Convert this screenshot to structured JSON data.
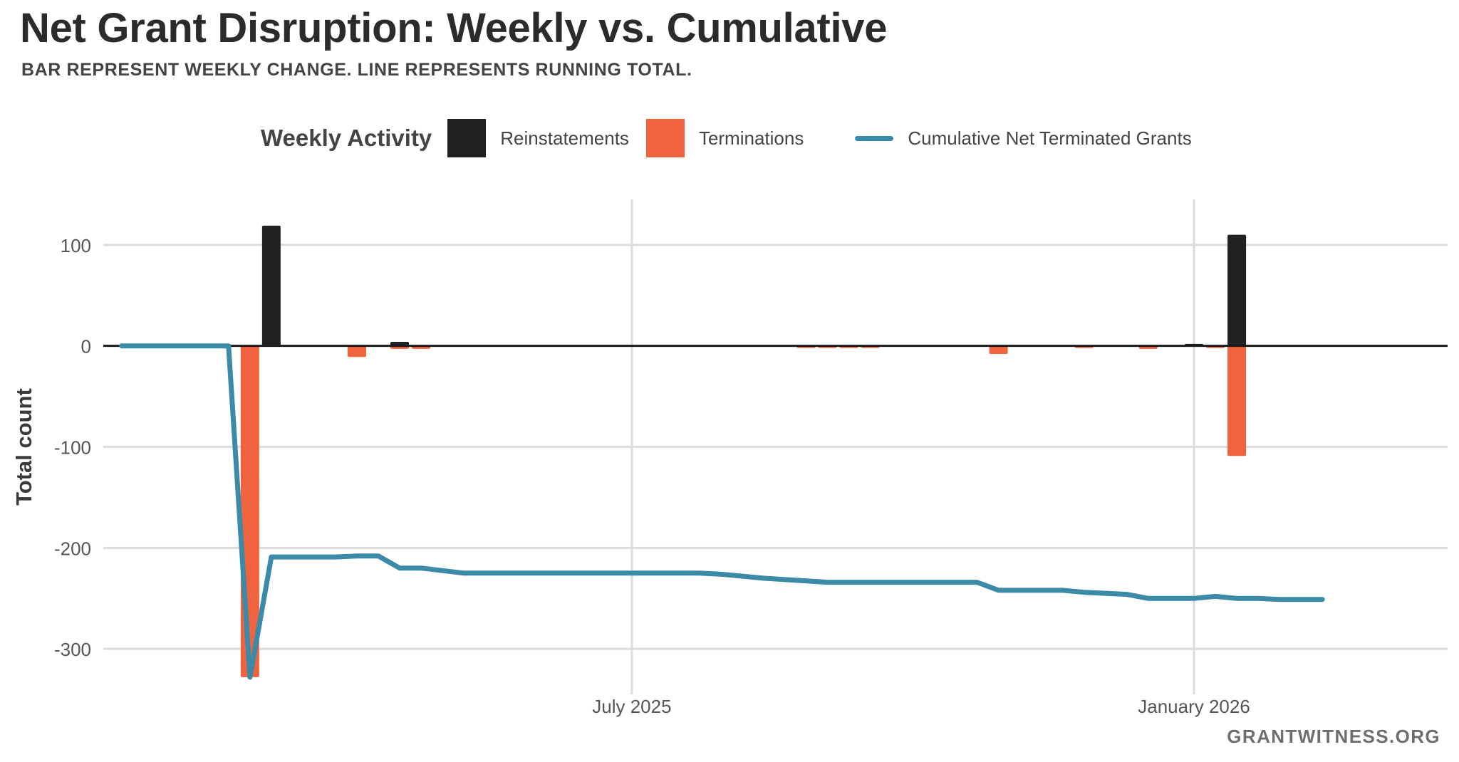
{
  "header": {
    "title": "Net Grant Disruption: Weekly vs. Cumulative",
    "subtitle": "BAR REPRESENT WEEKLY CHANGE. LINE REPRESENTS RUNNING TOTAL."
  },
  "legend": {
    "title": "Weekly Activity",
    "items": [
      {
        "label": "Reinstatements",
        "color": "#1f2122"
      },
      {
        "label": "Terminations",
        "color": "#f0633f"
      },
      {
        "label": "Cumulative Net Terminated Grants",
        "color": "#3a8aa8"
      }
    ]
  },
  "footer": {
    "source": "GRANTWITNESS.ORG"
  },
  "chart_data": {
    "type": "bar",
    "title": "Net Grant Disruption: Weekly vs. Cumulative",
    "subtitle": "BAR REPRESENT WEEKLY CHANGE. LINE REPRESENTS RUNNING TOTAL.",
    "xlabel": "",
    "ylabel": "Total count",
    "ylim": [
      -345,
      145
    ],
    "xlim": [
      "2025-01-09",
      "2026-03-25"
    ],
    "yticks": [
      100,
      0,
      -100,
      -200,
      -300
    ],
    "xticks": [
      {
        "date": "2025-07-01",
        "label": "July 2025"
      },
      {
        "date": "2026-01-01",
        "label": "January 2026"
      }
    ],
    "grid": true,
    "legend_position": "top",
    "series": [
      {
        "name": "Reinstatements",
        "type": "bar",
        "color": "#1f2122",
        "points": [
          {
            "x": "2025-03-05",
            "y": 119
          },
          {
            "x": "2025-04-16",
            "y": 4
          },
          {
            "x": "2026-01-01",
            "y": 2
          },
          {
            "x": "2026-01-15",
            "y": 110
          }
        ]
      },
      {
        "name": "Terminations",
        "type": "bar",
        "color": "#f0633f",
        "points": [
          {
            "x": "2025-02-26",
            "y": -328
          },
          {
            "x": "2025-04-02",
            "y": -11
          },
          {
            "x": "2025-04-16",
            "y": -3
          },
          {
            "x": "2025-04-23",
            "y": -3
          },
          {
            "x": "2025-08-27",
            "y": -1
          },
          {
            "x": "2025-09-03",
            "y": -1
          },
          {
            "x": "2025-09-10",
            "y": -1
          },
          {
            "x": "2025-09-17",
            "y": -1
          },
          {
            "x": "2025-10-29",
            "y": -8
          },
          {
            "x": "2025-11-26",
            "y": -1
          },
          {
            "x": "2025-12-17",
            "y": -3
          },
          {
            "x": "2026-01-08",
            "y": -1
          },
          {
            "x": "2026-01-15",
            "y": -109
          }
        ]
      },
      {
        "name": "Cumulative Net Terminated Grants",
        "type": "line",
        "color": "#3a8aa8",
        "points": [
          {
            "x": "2025-01-15",
            "y": 0
          },
          {
            "x": "2025-02-19",
            "y": 0
          },
          {
            "x": "2025-02-26",
            "y": -328
          },
          {
            "x": "2025-03-05",
            "y": -209
          },
          {
            "x": "2025-03-26",
            "y": -209
          },
          {
            "x": "2025-04-02",
            "y": -208
          },
          {
            "x": "2025-04-09",
            "y": -208
          },
          {
            "x": "2025-04-16",
            "y": -220
          },
          {
            "x": "2025-04-23",
            "y": -220
          },
          {
            "x": "2025-05-07",
            "y": -225
          },
          {
            "x": "2025-06-25",
            "y": -225
          },
          {
            "x": "2025-07-23",
            "y": -225
          },
          {
            "x": "2025-07-30",
            "y": -226
          },
          {
            "x": "2025-08-13",
            "y": -230
          },
          {
            "x": "2025-09-03",
            "y": -234
          },
          {
            "x": "2025-10-22",
            "y": -234
          },
          {
            "x": "2025-10-29",
            "y": -242
          },
          {
            "x": "2025-11-19",
            "y": -242
          },
          {
            "x": "2025-11-26",
            "y": -244
          },
          {
            "x": "2025-12-10",
            "y": -246
          },
          {
            "x": "2025-12-17",
            "y": -250
          },
          {
            "x": "2026-01-01",
            "y": -250
          },
          {
            "x": "2026-01-08",
            "y": -248
          },
          {
            "x": "2026-01-15",
            "y": -250
          },
          {
            "x": "2026-01-22",
            "y": -250
          },
          {
            "x": "2026-01-29",
            "y": -251
          },
          {
            "x": "2026-02-12",
            "y": -251
          }
        ]
      }
    ]
  }
}
